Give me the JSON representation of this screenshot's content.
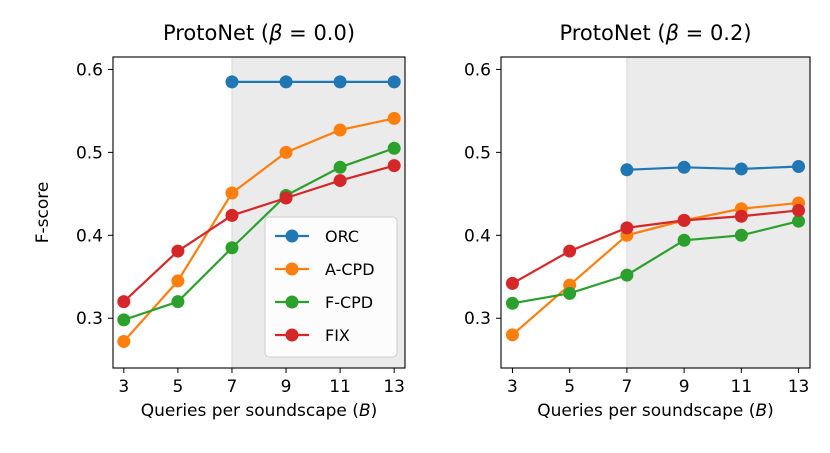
{
  "chart_data": [
    {
      "type": "line",
      "title": "ProtoNet (β = 0.0)",
      "title_prefix": "ProtoNet (",
      "title_symbol": "β",
      "title_suffix": " = 0.0)",
      "xlabel": "Queries per soundscape (B)",
      "xlabel_prefix": "Queries per soundscape (",
      "xlabel_symbol": "B",
      "xlabel_suffix": ")",
      "ylabel": "F-score",
      "x_ticks": [
        3,
        5,
        7,
        9,
        11,
        13
      ],
      "y_ticks": [
        "0.3",
        "0.4",
        "0.5",
        "0.6"
      ],
      "xlim": [
        2.6,
        13.4
      ],
      "ylim": [
        0.24,
        0.615
      ],
      "shaded_region": [
        7,
        13.4
      ],
      "legend": true,
      "legend_position": "lower-right",
      "series": [
        {
          "name": "ORC",
          "color": "#1f77b4",
          "x": [
            7,
            9,
            11,
            13
          ],
          "values": [
            0.585,
            0.585,
            0.585,
            0.585
          ]
        },
        {
          "name": "A-CPD",
          "color": "#ff7f0e",
          "x": [
            3,
            5,
            7,
            9,
            11,
            13
          ],
          "values": [
            0.272,
            0.345,
            0.451,
            0.5,
            0.527,
            0.541
          ]
        },
        {
          "name": "F-CPD",
          "color": "#2ca02c",
          "x": [
            3,
            5,
            7,
            9,
            11,
            13
          ],
          "values": [
            0.298,
            0.32,
            0.385,
            0.448,
            0.482,
            0.505
          ]
        },
        {
          "name": "FIX",
          "color": "#d62728",
          "x": [
            3,
            5,
            7,
            9,
            11,
            13
          ],
          "values": [
            0.32,
            0.381,
            0.424,
            0.445,
            0.466,
            0.484
          ]
        }
      ]
    },
    {
      "type": "line",
      "title": "ProtoNet (β = 0.2)",
      "title_prefix": "ProtoNet (",
      "title_symbol": "β",
      "title_suffix": " = 0.2)",
      "xlabel": "Queries per soundscape (B)",
      "xlabel_prefix": "Queries per soundscape (",
      "xlabel_symbol": "B",
      "xlabel_suffix": ")",
      "ylabel": "",
      "x_ticks": [
        3,
        5,
        7,
        9,
        11,
        13
      ],
      "y_ticks": [
        "0.3",
        "0.4",
        "0.5",
        "0.6"
      ],
      "xlim": [
        2.6,
        13.4
      ],
      "ylim": [
        0.24,
        0.615
      ],
      "shaded_region": [
        7,
        13.4
      ],
      "legend": false,
      "series": [
        {
          "name": "ORC",
          "color": "#1f77b4",
          "x": [
            7,
            9,
            11,
            13
          ],
          "values": [
            0.479,
            0.482,
            0.48,
            0.483
          ]
        },
        {
          "name": "A-CPD",
          "color": "#ff7f0e",
          "x": [
            3,
            5,
            7,
            9,
            11,
            13
          ],
          "values": [
            0.28,
            0.34,
            0.4,
            0.418,
            0.432,
            0.439
          ]
        },
        {
          "name": "F-CPD",
          "color": "#2ca02c",
          "x": [
            3,
            5,
            7,
            9,
            11,
            13
          ],
          "values": [
            0.318,
            0.33,
            0.352,
            0.394,
            0.4,
            0.417
          ]
        },
        {
          "name": "FIX",
          "color": "#d62728",
          "x": [
            3,
            5,
            7,
            9,
            11,
            13
          ],
          "values": [
            0.342,
            0.381,
            0.409,
            0.418,
            0.423,
            0.43
          ]
        }
      ]
    }
  ]
}
